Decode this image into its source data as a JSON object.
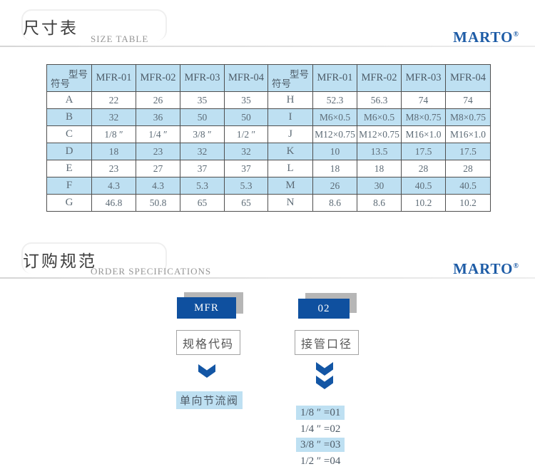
{
  "section1": {
    "title_cn": "尺寸表",
    "title_en": "SIZE TABLE",
    "brand": "MARTO",
    "reg": "®"
  },
  "section2": {
    "title_cn": "订购规范",
    "title_en": "ORDER SPECIFICATIONS",
    "brand": "MARTO",
    "reg": "®"
  },
  "size_table": {
    "corner_top": "型号",
    "corner_bottom": "符号",
    "model_headers": [
      "MFR-01",
      "MFR-02",
      "MFR-03",
      "MFR-04"
    ],
    "rows_left": [
      {
        "sym": "A",
        "values": [
          "22",
          "26",
          "35",
          "35"
        ]
      },
      {
        "sym": "B",
        "values": [
          "32",
          "36",
          "50",
          "50"
        ]
      },
      {
        "sym": "C",
        "values": [
          "1/8 ″",
          "1/4 ″",
          "3/8 ″",
          "1/2 ″"
        ]
      },
      {
        "sym": "D",
        "values": [
          "18",
          "23",
          "32",
          "32"
        ]
      },
      {
        "sym": "E",
        "values": [
          "23",
          "27",
          "37",
          "37"
        ]
      },
      {
        "sym": "F",
        "values": [
          "4.3",
          "4.3",
          "5.3",
          "5.3"
        ]
      },
      {
        "sym": "G",
        "values": [
          "46.8",
          "50.8",
          "65",
          "65"
        ]
      }
    ],
    "rows_right": [
      {
        "sym": "H",
        "values": [
          "52.3",
          "56.3",
          "74",
          "74"
        ]
      },
      {
        "sym": "I",
        "values": [
          "M6×0.5",
          "M6×0.5",
          "M8×0.75",
          "M8×0.75"
        ]
      },
      {
        "sym": "J",
        "values": [
          "M12×0.75",
          "M12×0.75",
          "M16×1.0",
          "M16×1.0"
        ]
      },
      {
        "sym": "K",
        "values": [
          "10",
          "13.5",
          "17.5",
          "17.5"
        ]
      },
      {
        "sym": "L",
        "values": [
          "18",
          "18",
          "28",
          "28"
        ]
      },
      {
        "sym": "M",
        "values": [
          "26",
          "30",
          "40.5",
          "40.5"
        ]
      },
      {
        "sym": "N",
        "values": [
          "8.6",
          "8.6",
          "10.2",
          "10.2"
        ]
      }
    ]
  },
  "order": {
    "model_code": "MFR",
    "size_code": "02",
    "model_label": "规格代码",
    "size_label": "接管口径",
    "model_value": "单向节流阀",
    "size_options": [
      {
        "label": "1/8 ″ =01",
        "highlight": true
      },
      {
        "label": "1/4 ″ =02",
        "highlight": false
      },
      {
        "label": "3/8 ″ =03",
        "highlight": true
      },
      {
        "label": "1/2 ″ =04",
        "highlight": false
      }
    ]
  },
  "colors": {
    "light_blue": "#bee0f2",
    "box_blue": "#0f509f",
    "brand_blue": "#1e5ca6",
    "shadow_gray": "#b6b6b6"
  }
}
